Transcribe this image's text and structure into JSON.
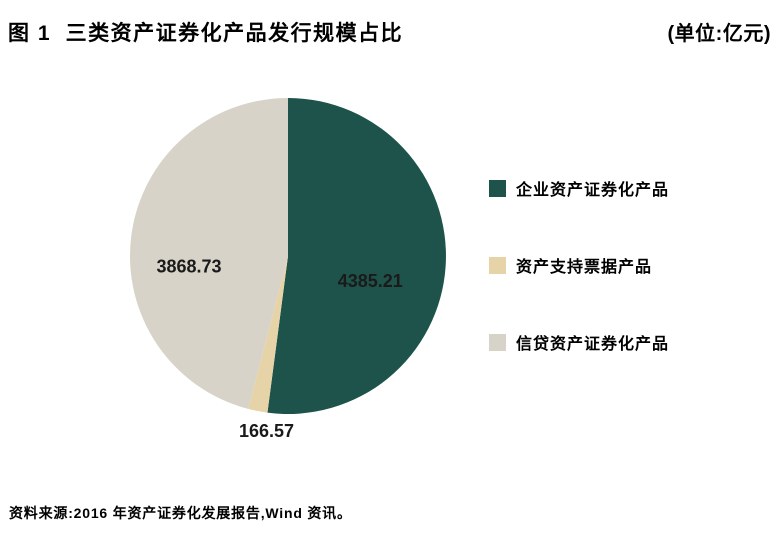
{
  "header": {
    "title": "图 1  三类资产证券化产品发行规模占比",
    "unit": "(单位:亿元)"
  },
  "chart_data": {
    "type": "pie",
    "title": "三类资产证券化产品发行规模占比",
    "figure_number": "图 1",
    "unit": "亿元",
    "categories": [
      "企业资产证券化产品",
      "资产支持票据产品",
      "信贷资产证券化产品"
    ],
    "values": [
      4385.21,
      166.57,
      3868.73
    ],
    "value_labels": [
      "4385.21",
      "166.57",
      "3868.73"
    ],
    "colors": [
      "#1E534C",
      "#E6D3A7",
      "#D7D3C8"
    ],
    "label_color": "#1a1a1a",
    "start_angle_deg": 0,
    "direction": "clockwise",
    "legend_position": "right",
    "label_layout": [
      {
        "placement": "inside",
        "r_frac": 0.545,
        "angle_deg": 107
      },
      {
        "placement": "outside",
        "r_frac": 1.115,
        "angle_deg": 187
      },
      {
        "placement": "inside",
        "r_frac": 0.63,
        "angle_deg": 264
      }
    ]
  },
  "footer": {
    "source": "资料来源:2016 年资产证券化发展报告,Wind 资讯。"
  }
}
